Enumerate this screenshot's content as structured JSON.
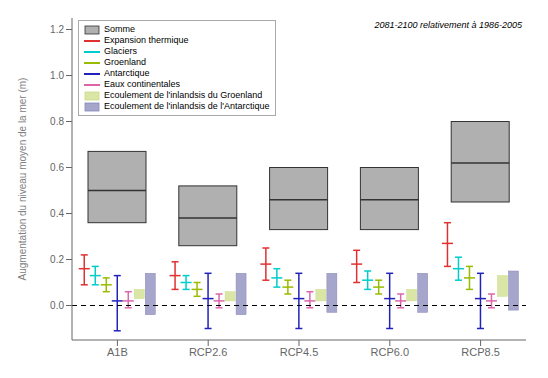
{
  "chart_data": {
    "type": "box",
    "categories": [
      "A1B",
      "RCP2.6",
      "RCP4.5",
      "RCP6.0",
      "RCP8.5"
    ],
    "ylabel": "Augmentation du niveau moyen de la mer (m)",
    "annotation": "2081-2100 relativement à 1986-2005",
    "ylim": [
      -0.15,
      1.25
    ],
    "yticks": [
      {
        "value": 0,
        "label": "0.0"
      },
      0.2,
      0.4,
      0.6,
      0.8,
      {
        "value": 1,
        "label": "1.0"
      },
      1.2
    ],
    "reference_line": 0,
    "grid": false,
    "legend": "upper left",
    "series": [
      {
        "name": "Somme",
        "type": "box",
        "color": "#b0b0b0",
        "q1": [
          0.36,
          0.26,
          0.33,
          0.33,
          0.45
        ],
        "median": [
          0.5,
          0.38,
          0.46,
          0.46,
          0.62
        ],
        "q3": [
          0.67,
          0.52,
          0.6,
          0.6,
          0.8
        ]
      },
      {
        "name": "Expansion thermique",
        "type": "errorbar",
        "color": "#e03030",
        "values": [
          0.16,
          0.13,
          0.18,
          0.18,
          0.27
        ],
        "low": [
          0.09,
          0.07,
          0.11,
          0.1,
          0.17
        ],
        "high": [
          0.22,
          0.19,
          0.25,
          0.24,
          0.36
        ]
      },
      {
        "name": "Glaciers",
        "type": "errorbar",
        "color": "#00cccc",
        "values": [
          0.13,
          0.1,
          0.12,
          0.11,
          0.16
        ],
        "low": [
          0.09,
          0.07,
          0.08,
          0.07,
          0.11
        ],
        "high": [
          0.17,
          0.13,
          0.16,
          0.15,
          0.21
        ]
      },
      {
        "name": "Groenland",
        "type": "errorbar",
        "color": "#99bb00",
        "values": [
          0.09,
          0.07,
          0.08,
          0.08,
          0.12
        ],
        "low": [
          0.06,
          0.04,
          0.05,
          0.05,
          0.07
        ],
        "high": [
          0.12,
          0.1,
          0.11,
          0.11,
          0.17
        ]
      },
      {
        "name": "Antarctique",
        "type": "errorbar",
        "color": "#2222bb",
        "values": [
          0.02,
          0.03,
          0.03,
          0.03,
          0.03
        ],
        "low": [
          -0.11,
          -0.1,
          -0.1,
          -0.1,
          -0.1
        ],
        "high": [
          0.13,
          0.14,
          0.14,
          0.14,
          0.14
        ]
      },
      {
        "name": "Eaux continentales",
        "type": "errorbar",
        "color": "#dd66aa",
        "values": [
          0.02,
          0.02,
          0.02,
          0.02,
          0.02
        ],
        "low": [
          -0.01,
          -0.01,
          -0.01,
          -0.01,
          -0.01
        ],
        "high": [
          0.06,
          0.05,
          0.06,
          0.05,
          0.05
        ]
      },
      {
        "name": "Ecoulement de l'inlandsis du Groenland",
        "type": "range_bar",
        "color": "#ccdd88",
        "q1": [
          0.03,
          0.02,
          0.02,
          0.02,
          0.04
        ],
        "q3": [
          0.07,
          0.06,
          0.07,
          0.07,
          0.13
        ]
      },
      {
        "name": "Ecoulement de l'inlandsis de l'Antarctique",
        "type": "range_bar",
        "color": "#8888bb",
        "q1": [
          -0.04,
          -0.04,
          -0.03,
          -0.03,
          -0.02
        ],
        "q3": [
          0.14,
          0.14,
          0.14,
          0.14,
          0.15
        ]
      }
    ]
  }
}
